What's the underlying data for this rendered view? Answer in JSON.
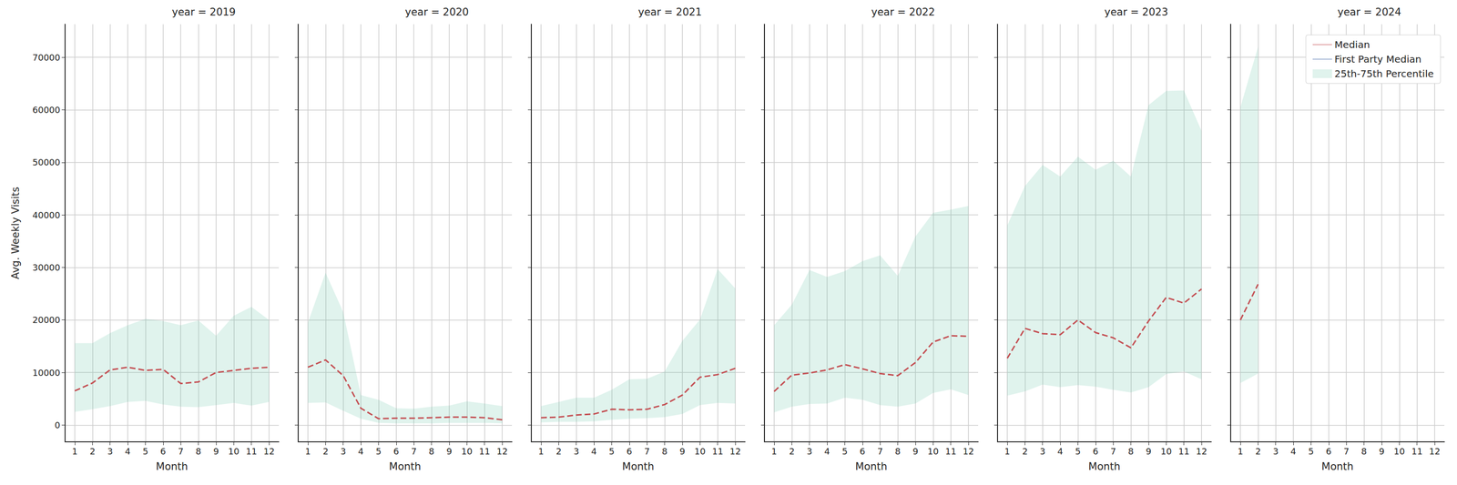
{
  "chart_data": [
    {
      "type": "line",
      "title": "year = 2019",
      "xlabel": "Month",
      "ylabel": "Avg. Weekly Visits",
      "x": [
        1,
        2,
        3,
        4,
        5,
        6,
        7,
        8,
        9,
        10,
        11,
        12
      ],
      "xlim": [
        0.45,
        12.55
      ],
      "xticks": [
        1,
        2,
        3,
        4,
        5,
        6,
        7,
        8,
        9,
        10,
        11,
        12
      ],
      "ylim": [
        -3200,
        76300
      ],
      "yticks": [
        0,
        10000,
        20000,
        30000,
        40000,
        50000,
        60000,
        70000
      ],
      "grid": true,
      "series": [
        {
          "name": "Median",
          "color": "#c44e52",
          "line_style": "dashed",
          "values": [
            6500,
            8000,
            10500,
            11000,
            10400,
            10600,
            7900,
            8200,
            10000,
            10400,
            10800,
            11000
          ]
        },
        {
          "name": "First Party Median",
          "color": "#4c72b0",
          "line_style": "dashed",
          "values": [
            null,
            null,
            null,
            null,
            null,
            null,
            null,
            null,
            null,
            null,
            null,
            null
          ]
        },
        {
          "name": "25th-75th Percentile",
          "type": "area",
          "color": "#66c2a5",
          "lower": [
            2500,
            3000,
            3600,
            4400,
            4600,
            3900,
            3500,
            3400,
            3800,
            4200,
            3700,
            4400
          ],
          "upper": [
            15600,
            15600,
            17500,
            19000,
            20200,
            19800,
            19000,
            19900,
            17000,
            20800,
            22500,
            20000
          ]
        }
      ]
    },
    {
      "type": "line",
      "title": "year = 2020",
      "xlabel": "Month",
      "tick_labels": "x",
      "x": [
        1,
        2,
        3,
        4,
        5,
        6,
        7,
        8,
        9,
        10,
        11,
        12
      ],
      "xlim": [
        0.45,
        12.55
      ],
      "xticks": [
        1,
        2,
        3,
        4,
        5,
        6,
        7,
        8,
        9,
        10,
        11,
        12
      ],
      "ylim": [
        -3200,
        76300
      ],
      "yticks": [
        0,
        10000,
        20000,
        30000,
        40000,
        50000,
        60000,
        70000
      ],
      "grid": true,
      "series": [
        {
          "name": "Median",
          "color": "#c44e52",
          "line_style": "dashed",
          "values": [
            11000,
            12400,
            9400,
            3200,
            1200,
            1300,
            1300,
            1400,
            1500,
            1500,
            1400,
            1000
          ]
        },
        {
          "name": "First Party Median",
          "color": "#4c72b0",
          "line_style": "dashed",
          "values": [
            null,
            null,
            null,
            null,
            null,
            null,
            null,
            null,
            null,
            null,
            null,
            null
          ]
        },
        {
          "name": "25th-75th Percentile",
          "type": "area",
          "color": "#66c2a5",
          "lower": [
            4200,
            4300,
            2700,
            1200,
            400,
            300,
            300,
            300,
            400,
            400,
            400,
            300
          ],
          "upper": [
            19500,
            29000,
            21500,
            5700,
            4800,
            3200,
            3100,
            3500,
            3700,
            4500,
            4100,
            3600
          ]
        }
      ]
    },
    {
      "type": "line",
      "title": "year = 2021",
      "xlabel": "Month",
      "tick_labels": "x",
      "x": [
        1,
        2,
        3,
        4,
        5,
        6,
        7,
        8,
        9,
        10,
        11,
        12
      ],
      "xlim": [
        0.45,
        12.55
      ],
      "xticks": [
        1,
        2,
        3,
        4,
        5,
        6,
        7,
        8,
        9,
        10,
        11,
        12
      ],
      "ylim": [
        -3200,
        76300
      ],
      "yticks": [
        0,
        10000,
        20000,
        30000,
        40000,
        50000,
        60000,
        70000
      ],
      "grid": true,
      "series": [
        {
          "name": "Median",
          "color": "#c44e52",
          "line_style": "dashed",
          "values": [
            1400,
            1500,
            1900,
            2100,
            3000,
            2900,
            3000,
            3900,
            5700,
            9100,
            9600,
            10800
          ]
        },
        {
          "name": "First Party Median",
          "color": "#4c72b0",
          "line_style": "dashed",
          "values": [
            null,
            null,
            null,
            null,
            null,
            null,
            null,
            null,
            null,
            null,
            null,
            null
          ]
        },
        {
          "name": "25th-75th Percentile",
          "type": "area",
          "color": "#66c2a5",
          "lower": [
            500,
            600,
            600,
            700,
            1000,
            1200,
            1300,
            1500,
            2100,
            3800,
            4200,
            4100
          ],
          "upper": [
            3600,
            4400,
            5200,
            5200,
            6700,
            8700,
            8800,
            10200,
            16000,
            20100,
            29700,
            26000
          ]
        }
      ]
    },
    {
      "type": "line",
      "title": "year = 2022",
      "xlabel": "Month",
      "tick_labels": "x",
      "x": [
        1,
        2,
        3,
        4,
        5,
        6,
        7,
        8,
        9,
        10,
        11,
        12
      ],
      "xlim": [
        0.45,
        12.55
      ],
      "xticks": [
        1,
        2,
        3,
        4,
        5,
        6,
        7,
        8,
        9,
        10,
        11,
        12
      ],
      "ylim": [
        -3200,
        76300
      ],
      "yticks": [
        0,
        10000,
        20000,
        30000,
        40000,
        50000,
        60000,
        70000
      ],
      "grid": true,
      "series": [
        {
          "name": "Median",
          "color": "#c44e52",
          "line_style": "dashed",
          "values": [
            6400,
            9500,
            9900,
            10500,
            11500,
            10700,
            9800,
            9400,
            11900,
            15800,
            17000,
            16900
          ]
        },
        {
          "name": "First Party Median",
          "color": "#4c72b0",
          "line_style": "dashed",
          "values": [
            null,
            null,
            null,
            null,
            null,
            null,
            null,
            null,
            null,
            null,
            null,
            null
          ]
        },
        {
          "name": "25th-75th Percentile",
          "type": "area",
          "color": "#66c2a5",
          "lower": [
            2400,
            3500,
            4000,
            4100,
            5200,
            4800,
            3800,
            3500,
            4100,
            6100,
            6800,
            5700
          ],
          "upper": [
            19000,
            22900,
            29500,
            28200,
            29300,
            31200,
            32300,
            28400,
            35900,
            40400,
            41000,
            41700
          ]
        }
      ]
    },
    {
      "type": "line",
      "title": "year = 2023",
      "xlabel": "Month",
      "tick_labels": "x",
      "x": [
        1,
        2,
        3,
        4,
        5,
        6,
        7,
        8,
        9,
        10,
        11,
        12
      ],
      "xlim": [
        0.45,
        12.55
      ],
      "xticks": [
        1,
        2,
        3,
        4,
        5,
        6,
        7,
        8,
        9,
        10,
        11,
        12
      ],
      "ylim": [
        -3200,
        76300
      ],
      "yticks": [
        0,
        10000,
        20000,
        30000,
        40000,
        50000,
        60000,
        70000
      ],
      "grid": true,
      "series": [
        {
          "name": "Median",
          "color": "#c44e52",
          "line_style": "dashed",
          "values": [
            12700,
            18400,
            17400,
            17200,
            20000,
            17600,
            16600,
            14700,
            19800,
            24300,
            23200,
            25900
          ]
        },
        {
          "name": "First Party Median",
          "color": "#4c72b0",
          "line_style": "dashed",
          "values": [
            null,
            null,
            null,
            null,
            null,
            null,
            null,
            null,
            null,
            null,
            null,
            null
          ]
        },
        {
          "name": "25th-75th Percentile",
          "type": "area",
          "color": "#66c2a5",
          "lower": [
            5600,
            6400,
            7700,
            7200,
            7600,
            7300,
            6700,
            6200,
            7200,
            9700,
            10200,
            8700
          ],
          "upper": [
            38000,
            45500,
            49500,
            47300,
            51100,
            48600,
            50300,
            47300,
            60900,
            63600,
            63700,
            56000
          ]
        }
      ]
    },
    {
      "type": "line",
      "title": "year = 2024",
      "xlabel": "Month",
      "tick_labels": "x",
      "legend": "upper right",
      "x": [
        1,
        2,
        3,
        4,
        5,
        6,
        7,
        8,
        9,
        10,
        11,
        12
      ],
      "xlim": [
        0.45,
        12.55
      ],
      "xticks": [
        1,
        2,
        3,
        4,
        5,
        6,
        7,
        8,
        9,
        10,
        11,
        12
      ],
      "ylim": [
        -3200,
        76300
      ],
      "yticks": [
        0,
        10000,
        20000,
        30000,
        40000,
        50000,
        60000,
        70000
      ],
      "grid": true,
      "series": [
        {
          "name": "Median",
          "color": "#c44e52",
          "line_style": "dashed",
          "values": [
            20000,
            26800,
            null,
            null,
            null,
            null,
            null,
            null,
            null,
            null,
            null,
            null
          ]
        },
        {
          "name": "First Party Median",
          "color": "#4c72b0",
          "line_style": "dashed",
          "values": [
            null,
            null,
            null,
            null,
            null,
            null,
            null,
            null,
            null,
            null,
            null,
            null
          ]
        },
        {
          "name": "25th-75th Percentile",
          "type": "area",
          "color": "#66c2a5",
          "lower": [
            8000,
            9800,
            null,
            null,
            null,
            null,
            null,
            null,
            null,
            null,
            null,
            null
          ],
          "upper": [
            60500,
            72000,
            null,
            null,
            null,
            null,
            null,
            null,
            null,
            null,
            null,
            null
          ]
        }
      ]
    }
  ]
}
